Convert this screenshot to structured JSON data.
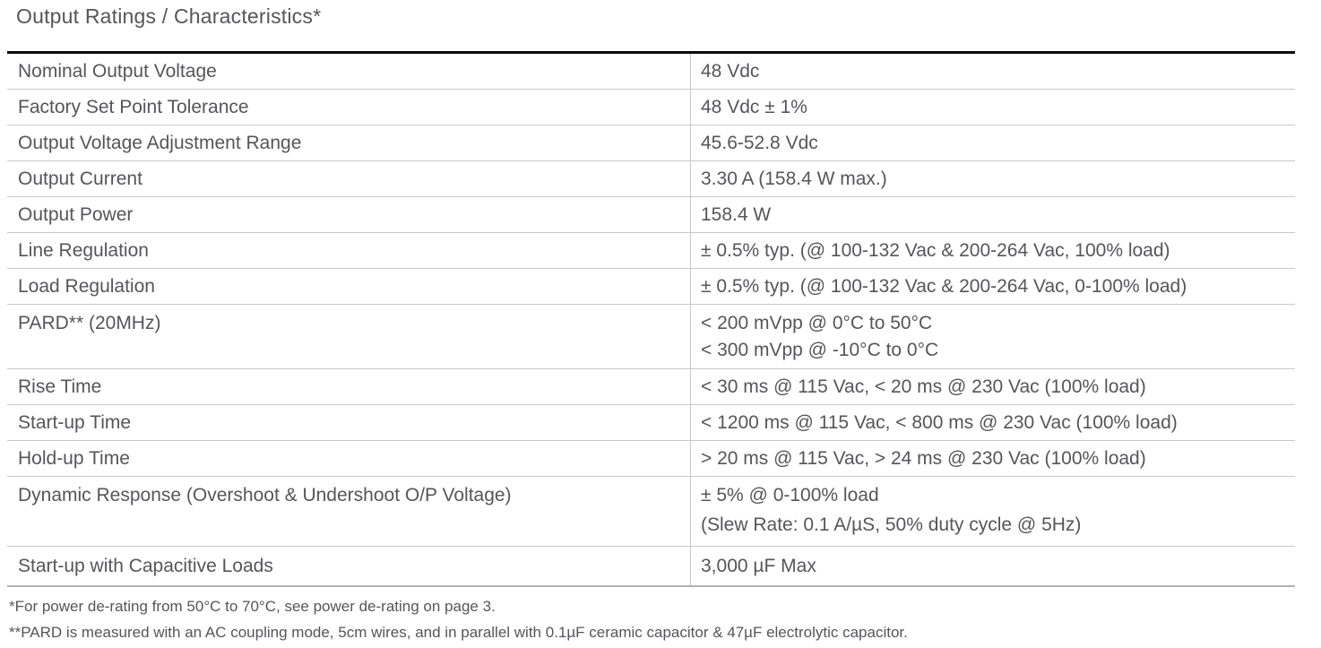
{
  "page": {
    "title": "Output Ratings / Characteristics*"
  },
  "colors": {
    "text": "#55565a",
    "table_top_border": "#0b0b0b",
    "row_divider": "#c8c8c8",
    "background": "#ffffff"
  },
  "table": {
    "columns": [
      "parameter",
      "value"
    ],
    "rows": [
      {
        "param": "Nominal Output Voltage",
        "value": "48 Vdc"
      },
      {
        "param": "Factory Set Point Tolerance",
        "value": "48 Vdc ± 1%"
      },
      {
        "param": "Output Voltage Adjustment Range",
        "value": "45.6-52.8 Vdc"
      },
      {
        "param": "Output Current",
        "value": "3.30 A (158.4 W max.)"
      },
      {
        "param": "Output Power",
        "value": "158.4 W"
      },
      {
        "param": "Line Regulation",
        "value": "± 0.5% typ. (@ 100-132 Vac & 200-264 Vac, 100% load)"
      },
      {
        "param": "Load Regulation",
        "value": "± 0.5% typ. (@ 100-132 Vac & 200-264 Vac, 0-100% load)"
      },
      {
        "param": "PARD** (20MHz)",
        "value": "< 200 mVpp @ 0°C to 50°C",
        "value2": "< 300 mVpp @ -10°C to 0°C"
      },
      {
        "param": "Rise Time",
        "value": "< 30 ms @ 115 Vac, < 20 ms @ 230 Vac (100% load)"
      },
      {
        "param": "Start-up Time",
        "value": "< 1200 ms @ 115 Vac, < 800 ms @ 230 Vac (100% load)"
      },
      {
        "param": "Hold-up Time",
        "value": "> 20 ms @ 115 Vac, > 24 ms @ 230 Vac (100% load)"
      },
      {
        "param": "Dynamic Response (Overshoot & Undershoot O/P Voltage)",
        "value": "± 5% @ 0-100% load",
        "value2": "(Slew Rate: 0.1 A/µS, 50% duty cycle @ 5Hz)"
      },
      {
        "param": "Start-up with Capacitive Loads",
        "value": "3,000 µF Max"
      }
    ]
  },
  "footnotes": [
    "*For power de-rating from 50°C to 70°C, see power de-rating on page 3.",
    "**PARD is measured with an AC coupling mode, 5cm wires, and in parallel with 0.1µF ceramic capacitor & 47µF electrolytic capacitor."
  ]
}
